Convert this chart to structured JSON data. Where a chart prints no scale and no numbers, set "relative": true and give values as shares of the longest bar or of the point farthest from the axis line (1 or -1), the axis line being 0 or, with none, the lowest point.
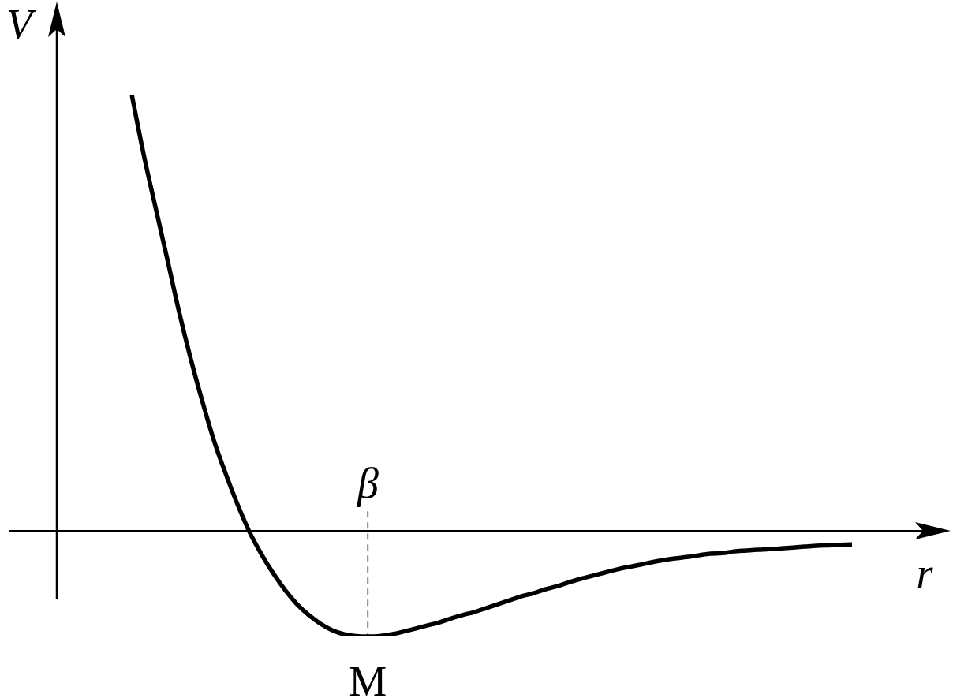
{
  "chart_data": {
    "type": "line",
    "relative": true,
    "xlabel": "r",
    "ylabel": "V",
    "color": "#000000",
    "marker": "none",
    "line_style": "solid",
    "legend": false,
    "categories": [
      null,
      null,
      null,
      null,
      null,
      null,
      null,
      null,
      null,
      null,
      null,
      null,
      null,
      null,
      null,
      null,
      null,
      null,
      null,
      null,
      null,
      null,
      null,
      null,
      null,
      null,
      null,
      null,
      null,
      null,
      null,
      null,
      null,
      null,
      null,
      null,
      null,
      null,
      null,
      null,
      null,
      null,
      null,
      null,
      null,
      null,
      null,
      null,
      null,
      null,
      null,
      null,
      null,
      null,
      null,
      null,
      null,
      null,
      null,
      null,
      null,
      null
    ],
    "values": [
      1.0,
      0.864,
      0.743,
      0.624,
      0.503,
      0.394,
      0.295,
      0.204,
      0.128,
      0.058,
      -0.004,
      -0.054,
      -0.098,
      -0.136,
      -0.168,
      -0.193,
      -0.213,
      -0.228,
      -0.237,
      -0.241,
      -0.242,
      -0.241,
      -0.237,
      -0.231,
      -0.224,
      -0.217,
      -0.21,
      -0.201,
      -0.193,
      -0.186,
      -0.177,
      -0.168,
      -0.159,
      -0.15,
      -0.143,
      -0.134,
      -0.127,
      -0.118,
      -0.11,
      -0.103,
      -0.096,
      -0.089,
      -0.083,
      -0.078,
      -0.072,
      -0.067,
      -0.063,
      -0.06,
      -0.056,
      -0.052,
      -0.051,
      -0.047,
      -0.045,
      -0.043,
      -0.042,
      -0.04,
      -0.038,
      -0.036,
      -0.034,
      -0.033,
      -0.032,
      -0.031
    ],
    "annotations": [
      "β",
      "M"
    ]
  }
}
